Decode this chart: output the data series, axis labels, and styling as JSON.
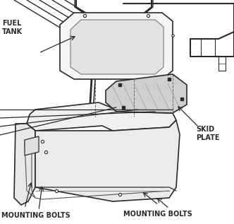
{
  "bg_color": "#ffffff",
  "line_color": "#2a2a2a",
  "figsize": [
    3.32,
    3.17
  ],
  "dpi": 100,
  "labels": {
    "fuel_tank": "FUEL\nTANK",
    "skid_plate": "SKID\nPLATE",
    "mounting_bolts_left": "MOUNTING BOLTS",
    "mounting_bolts_right": "MOUNTING BOLTS"
  }
}
